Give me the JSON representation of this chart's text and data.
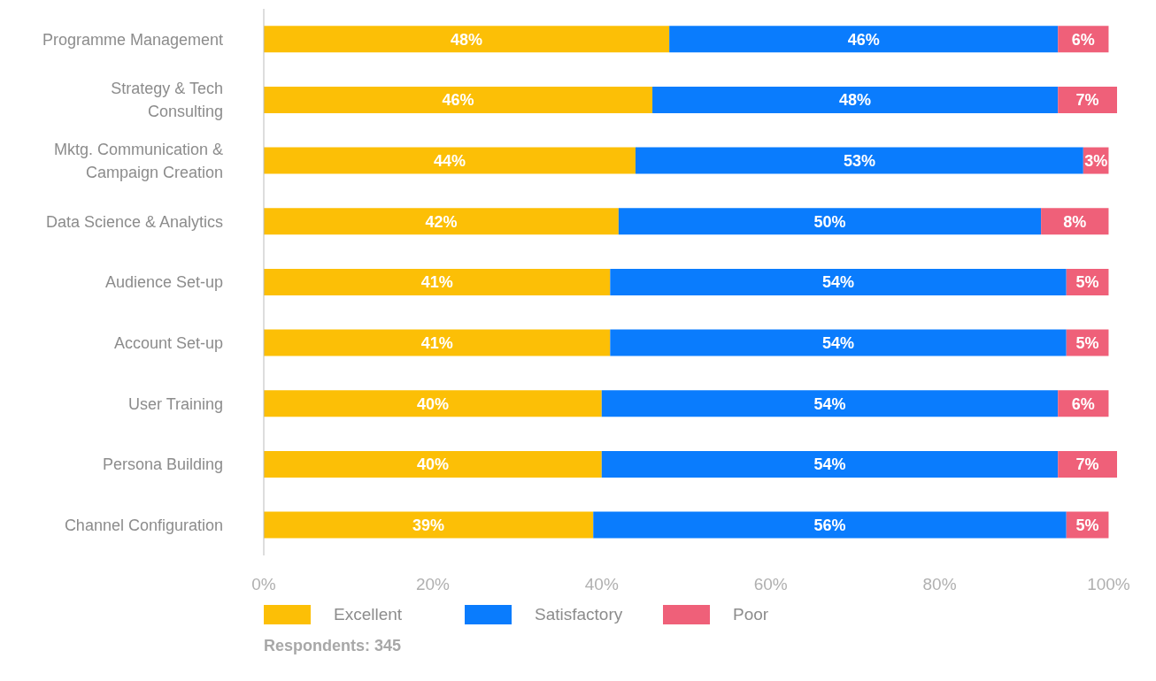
{
  "chart_data": {
    "type": "bar",
    "orientation": "horizontal",
    "stacked": true,
    "categories": [
      "Programme Management",
      "Strategy & Tech Consulting",
      "Mktg. Communication & Campaign Creation",
      "Data Science & Analytics",
      "Audience Set-up",
      "Account Set-up",
      "User Training",
      "Persona Building",
      "Channel Configuration"
    ],
    "series": [
      {
        "name": "Excellent",
        "color": "#fcbf06",
        "values": [
          48,
          46,
          44,
          42,
          41,
          41,
          40,
          40,
          39
        ],
        "value_labels": [
          "48%",
          "46%",
          "44%",
          "42%",
          "41%",
          "41%",
          "40%",
          "40%",
          "39%"
        ]
      },
      {
        "name": "Satisfactory",
        "color": "#0a7cfd",
        "values": [
          46,
          48,
          53,
          50,
          54,
          54,
          54,
          54,
          56
        ],
        "value_labels": [
          "46%",
          "48%",
          "53%",
          "50%",
          "54%",
          "54%",
          "54%",
          "54%",
          "56%"
        ]
      },
      {
        "name": "Poor",
        "color": "#ef6079",
        "values": [
          6,
          7,
          3,
          8,
          5,
          5,
          6,
          7,
          5
        ],
        "value_labels": [
          "6%",
          "7%",
          "3%",
          "8%",
          "5%",
          "5%",
          "6%",
          "7%",
          "5%"
        ]
      }
    ],
    "xlim": [
      0,
      101
    ],
    "xticks": [
      {
        "value": 0,
        "label": "0%"
      },
      {
        "value": 20,
        "label": "20%"
      },
      {
        "value": 40,
        "label": "40%"
      },
      {
        "value": 60,
        "label": "60%"
      },
      {
        "value": 80,
        "label": "80%"
      },
      {
        "value": 100,
        "label": "100%"
      }
    ],
    "grid": false,
    "legend": "bottom left",
    "annotations": [
      "Respondents: 345"
    ]
  }
}
